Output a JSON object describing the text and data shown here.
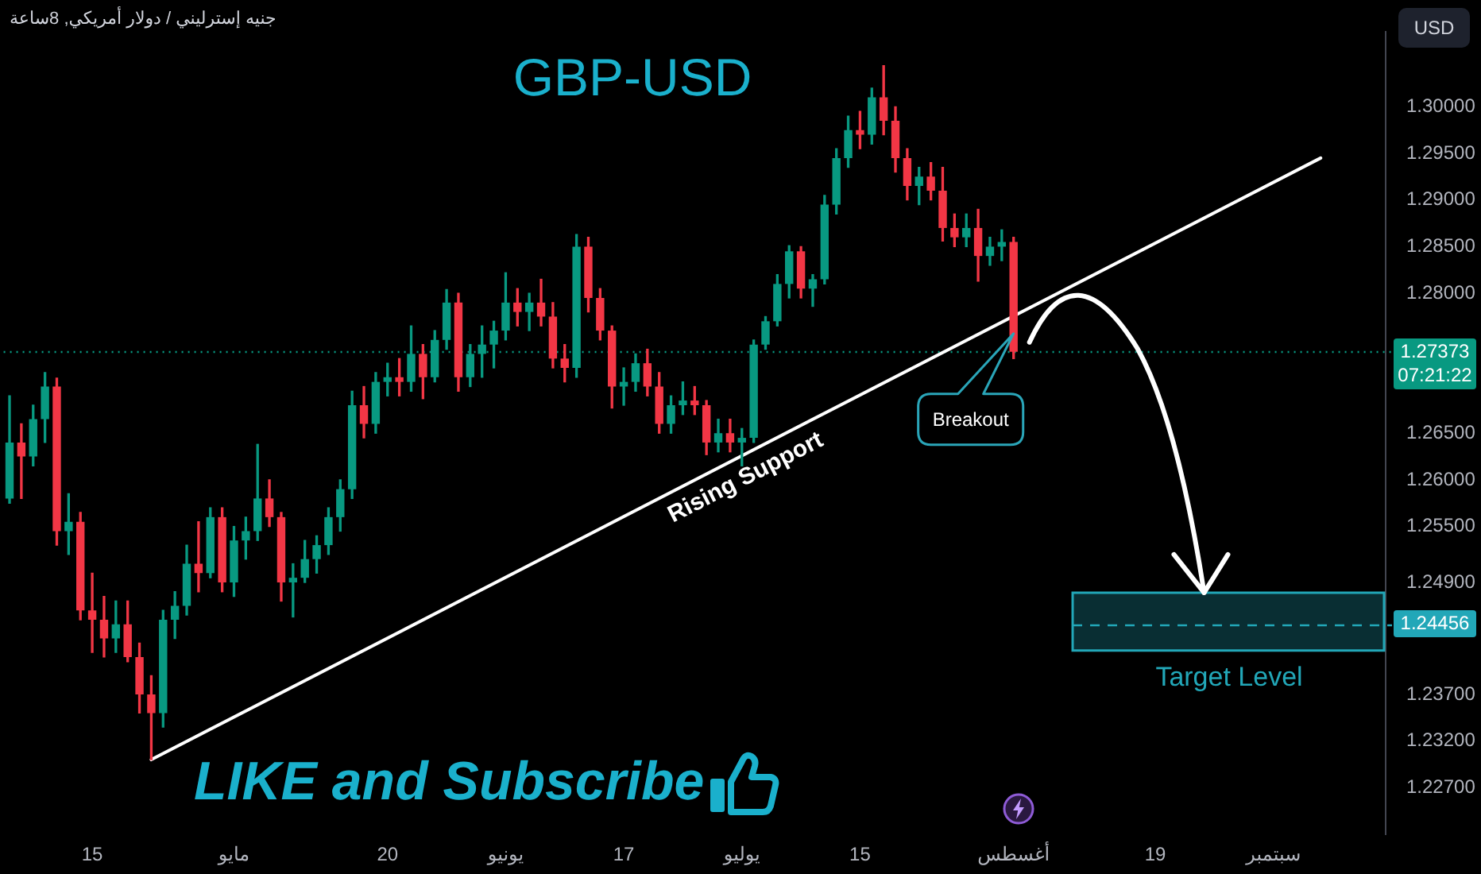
{
  "chart_data": {
    "type": "candlestick",
    "title": "GBP-USD",
    "subtitle": "جنيه إسترليني / دولار أمريكي, 8ساعة",
    "ylabel": "USD",
    "categories": [
      null,
      null,
      null,
      null,
      null,
      null,
      null,
      "15",
      null,
      null,
      null,
      null,
      null,
      null,
      null,
      null,
      null,
      null,
      null,
      "مايو",
      null,
      null,
      null,
      null,
      null,
      null,
      null,
      null,
      null,
      null,
      null,
      null,
      "20",
      null,
      null,
      null,
      null,
      null,
      null,
      null,
      null,
      null,
      "يونيو",
      null,
      null,
      null,
      null,
      null,
      null,
      null,
      null,
      null,
      "17",
      null,
      null,
      null,
      null,
      null,
      null,
      null,
      null,
      null,
      "يوليو",
      null,
      null,
      null,
      null,
      null,
      null,
      null,
      null,
      null,
      "15",
      null,
      null,
      null,
      null,
      null,
      null,
      null,
      null,
      null,
      null,
      null,
      null,
      "أغسطس",
      null,
      null,
      null,
      null,
      null,
      null,
      null,
      null,
      null,
      null,
      null,
      "19",
      null,
      null,
      null,
      null,
      null,
      null,
      null,
      null,
      null,
      "سبتمبر",
      null,
      null,
      null,
      null,
      null,
      null,
      null,
      null,
      null
    ],
    "series": [
      {
        "ohlc": [
          [
            1.258,
            1.269,
            1.2575,
            1.264
          ],
          [
            1.264,
            1.266,
            1.258,
            1.2625
          ],
          [
            1.2625,
            1.268,
            1.2615,
            1.2665
          ],
          [
            1.2665,
            1.2715,
            1.264,
            1.27
          ],
          [
            1.27,
            1.2709,
            1.253,
            1.2545
          ],
          [
            1.2545,
            1.2585,
            1.252,
            1.2555
          ],
          [
            1.2555,
            1.2565,
            1.245,
            1.246
          ],
          [
            1.246,
            1.25,
            1.2415,
            1.245
          ],
          [
            1.245,
            1.2475,
            1.241,
            1.243
          ],
          [
            1.243,
            1.247,
            1.2415,
            1.2445
          ],
          [
            1.2445,
            1.247,
            1.2405,
            1.241
          ],
          [
            1.241,
            1.2425,
            1.235,
            1.237
          ],
          [
            1.237,
            1.239,
            1.23,
            1.235
          ],
          [
            1.235,
            1.246,
            1.2335,
            1.245
          ],
          [
            1.245,
            1.248,
            1.243,
            1.2465
          ],
          [
            1.2465,
            1.253,
            1.2455,
            1.251
          ],
          [
            1.251,
            1.2555,
            1.248,
            1.25
          ],
          [
            1.25,
            1.257,
            1.2495,
            1.256
          ],
          [
            1.256,
            1.257,
            1.248,
            1.249
          ],
          [
            1.249,
            1.255,
            1.2475,
            1.2535
          ],
          [
            1.2535,
            1.256,
            1.2515,
            1.2545
          ],
          [
            1.2545,
            1.2638,
            1.2535,
            1.258
          ],
          [
            1.258,
            1.26,
            1.255,
            1.256
          ],
          [
            1.256,
            1.2565,
            1.247,
            1.249
          ],
          [
            1.249,
            1.251,
            1.2453,
            1.2495
          ],
          [
            1.2495,
            1.2535,
            1.249,
            1.2515
          ],
          [
            1.2515,
            1.254,
            1.25,
            1.253
          ],
          [
            1.253,
            1.257,
            1.252,
            1.256
          ],
          [
            1.256,
            1.26,
            1.2545,
            1.259
          ],
          [
            1.259,
            1.2695,
            1.258,
            1.268
          ],
          [
            1.268,
            1.27,
            1.2645,
            1.266
          ],
          [
            1.266,
            1.2715,
            1.265,
            1.2705
          ],
          [
            1.2705,
            1.2725,
            1.269,
            1.271
          ],
          [
            1.271,
            1.273,
            1.269,
            1.2705
          ],
          [
            1.2705,
            1.2765,
            1.2695,
            1.2735
          ],
          [
            1.2735,
            1.2745,
            1.2687,
            1.271
          ],
          [
            1.271,
            1.276,
            1.2705,
            1.275
          ],
          [
            1.275,
            1.2804,
            1.274,
            1.279
          ],
          [
            1.279,
            1.28,
            1.2695,
            1.271
          ],
          [
            1.271,
            1.2745,
            1.27,
            1.2735
          ],
          [
            1.2735,
            1.2765,
            1.271,
            1.2745
          ],
          [
            1.2745,
            1.277,
            1.272,
            1.276
          ],
          [
            1.276,
            1.2822,
            1.275,
            1.279
          ],
          [
            1.279,
            1.2805,
            1.2765,
            1.278
          ],
          [
            1.278,
            1.28,
            1.276,
            1.279
          ],
          [
            1.279,
            1.2815,
            1.2765,
            1.2775
          ],
          [
            1.2775,
            1.279,
            1.272,
            1.273
          ],
          [
            1.273,
            1.2745,
            1.2705,
            1.272
          ],
          [
            1.272,
            1.2863,
            1.271,
            1.285
          ],
          [
            1.285,
            1.286,
            1.278,
            1.2795
          ],
          [
            1.2795,
            1.2805,
            1.275,
            1.276
          ],
          [
            1.276,
            1.2765,
            1.2677,
            1.27
          ],
          [
            1.27,
            1.272,
            1.268,
            1.2705
          ],
          [
            1.2705,
            1.2735,
            1.2695,
            1.2725
          ],
          [
            1.2725,
            1.274,
            1.269,
            1.27
          ],
          [
            1.27,
            1.2715,
            1.265,
            1.266
          ],
          [
            1.266,
            1.269,
            1.265,
            1.268
          ],
          [
            1.268,
            1.2705,
            1.267,
            1.2685
          ],
          [
            1.2685,
            1.27,
            1.267,
            1.268
          ],
          [
            1.268,
            1.2685,
            1.2627,
            1.264
          ],
          [
            1.264,
            1.2665,
            1.263,
            1.265
          ],
          [
            1.265,
            1.2665,
            1.263,
            1.264
          ],
          [
            1.264,
            1.2655,
            1.2615,
            1.2645
          ],
          [
            1.2645,
            1.275,
            1.264,
            1.2745
          ],
          [
            1.2745,
            1.2775,
            1.274,
            1.277
          ],
          [
            1.277,
            1.282,
            1.2765,
            1.281
          ],
          [
            1.281,
            1.2851,
            1.2795,
            1.2845
          ],
          [
            1.2845,
            1.285,
            1.2795,
            1.2805
          ],
          [
            1.2805,
            1.282,
            1.2786,
            1.2815
          ],
          [
            1.2815,
            1.2905,
            1.281,
            1.2895
          ],
          [
            1.2895,
            1.2955,
            1.2885,
            1.2945
          ],
          [
            1.2945,
            1.299,
            1.2935,
            1.2975
          ],
          [
            1.2975,
            1.2995,
            1.2955,
            1.297
          ],
          [
            1.297,
            1.302,
            1.296,
            1.301
          ],
          [
            1.301,
            1.3044,
            1.297,
            1.2985
          ],
          [
            1.2985,
            1.3,
            1.293,
            1.2945
          ],
          [
            1.2945,
            1.2955,
            1.29,
            1.2915
          ],
          [
            1.2915,
            1.2935,
            1.2895,
            1.2925
          ],
          [
            1.2925,
            1.294,
            1.29,
            1.291
          ],
          [
            1.291,
            1.2935,
            1.2856,
            1.287
          ],
          [
            1.287,
            1.2885,
            1.285,
            1.286
          ],
          [
            1.286,
            1.2885,
            1.285,
            1.287
          ],
          [
            1.287,
            1.289,
            1.2813,
            1.284
          ],
          [
            1.284,
            1.286,
            1.283,
            1.285
          ],
          [
            1.285,
            1.2868,
            1.2835,
            1.2855
          ],
          [
            1.2855,
            1.286,
            1.273,
            1.27373
          ],
          null,
          null,
          null,
          null,
          null,
          null,
          null,
          null,
          null,
          null,
          null,
          null,
          null,
          null,
          null,
          null,
          null,
          null,
          null,
          null,
          null,
          null,
          null,
          null,
          null,
          null,
          null,
          null,
          null,
          null,
          null
        ],
        "colors": [
          "#089981",
          "#f23645",
          "#089981",
          "#089981",
          "#f23645",
          "#089981",
          "#f23645",
          "#f23645",
          "#f23645",
          "#089981",
          "#f23645",
          "#f23645",
          "#f23645",
          "#089981",
          "#089981",
          "#089981",
          "#f23645",
          "#089981",
          "#f23645",
          "#089981",
          "#089981",
          "#089981",
          "#f23645",
          "#f23645",
          "#089981",
          "#089981",
          "#089981",
          "#089981",
          "#089981",
          "#089981",
          "#f23645",
          "#089981",
          "#089981",
          "#f23645",
          "#089981",
          "#f23645",
          "#089981",
          "#089981",
          "#f23645",
          "#089981",
          "#089981",
          "#089981",
          "#089981",
          "#f23645",
          "#089981",
          "#f23645",
          "#f23645",
          "#f23645",
          "#089981",
          "#f23645",
          "#f23645",
          "#f23645",
          "#089981",
          "#089981",
          "#f23645",
          "#f23645",
          "#089981",
          "#089981",
          "#f23645",
          "#f23645",
          "#089981",
          "#f23645",
          "#089981",
          "#089981",
          "#089981",
          "#089981",
          "#089981",
          "#f23645",
          "#089981",
          "#089981",
          "#089981",
          "#089981",
          "#f23645",
          "#089981",
          "#f23645",
          "#f23645",
          "#f23645",
          "#089981",
          "#f23645",
          "#f23645",
          "#f23645",
          "#089981",
          "#f23645",
          "#089981",
          "#089981",
          "#f23645",
          null,
          null,
          null,
          null,
          null,
          null,
          null,
          null,
          null,
          null,
          null,
          null,
          null,
          null,
          null,
          null,
          null,
          null,
          null,
          null,
          null,
          null,
          null,
          null,
          null,
          null,
          null,
          null,
          null,
          null,
          null
        ]
      },
      {
        "type": "line",
        "name": "Rising Support",
        "color": "#ffffff",
        "values": [
          null,
          null,
          null,
          null,
          null,
          null,
          null,
          null,
          null,
          null,
          null,
          null,
          1.23,
          null,
          null,
          null,
          null,
          null,
          null,
          null,
          null,
          null,
          null,
          null,
          null,
          null,
          null,
          null,
          null,
          null,
          null,
          null,
          null,
          null,
          null,
          null,
          null,
          null,
          null,
          null,
          null,
          null,
          null,
          null,
          null,
          null,
          null,
          null,
          null,
          null,
          null,
          null,
          null,
          null,
          null,
          null,
          null,
          null,
          null,
          null,
          null,
          null,
          null,
          null,
          null,
          null,
          null,
          null,
          null,
          null,
          null,
          null,
          null,
          null,
          null,
          null,
          null,
          null,
          null,
          null,
          null,
          null,
          null,
          null,
          null,
          null,
          null,
          null,
          null,
          null,
          null,
          null,
          null,
          null,
          null,
          null,
          null,
          null,
          null,
          null,
          null,
          null,
          null,
          null,
          null,
          null,
          null,
          null,
          null,
          null,
          null,
          1.2945,
          null,
          null,
          null,
          null,
          null
        ]
      }
    ],
    "ylim": [
      1.222,
      1.308
    ],
    "yticks": [
      {
        "value": 1.3,
        "label": "1.30000"
      },
      {
        "value": 1.295,
        "label": "1.29500"
      },
      {
        "value": 1.29,
        "label": "1.29000"
      },
      {
        "value": 1.285,
        "label": "1.28500"
      },
      {
        "value": 1.28,
        "label": "1.28000"
      },
      {
        "value": 1.265,
        "label": "1.26500"
      },
      {
        "value": 1.26,
        "label": "1.26000"
      },
      {
        "value": 1.255,
        "label": "1.25500"
      },
      {
        "value": 1.249,
        "label": "1.24900"
      },
      {
        "value": 1.237,
        "label": "1.23700"
      },
      {
        "value": 1.232,
        "label": "1.23200"
      },
      {
        "value": 1.227,
        "label": "1.22700"
      }
    ],
    "ref_lines": [
      {
        "axis": "y",
        "value": 1.27373,
        "label": "1.27373\n07:21:22",
        "color": "#089981",
        "line_style": "dotted"
      },
      {
        "axis": "y",
        "value": 1.24456,
        "label": "1.24456",
        "color": "#22a7b8",
        "line_style": "dashed"
      }
    ],
    "bands": [
      {
        "axis": "y",
        "from": 1.2417,
        "to": 1.2479,
        "label": "Target Level",
        "color": "#22a7b8"
      }
    ],
    "annotations": [
      "Breakout",
      "LIKE and Subscribe"
    ]
  }
}
